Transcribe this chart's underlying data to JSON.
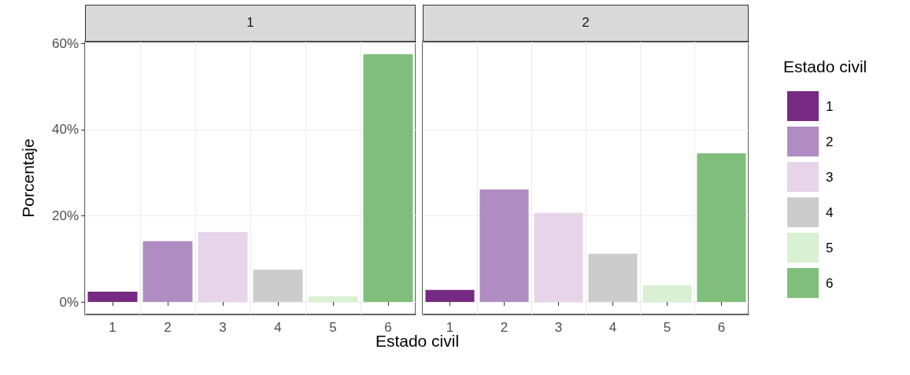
{
  "chart_data": [
    {
      "type": "bar",
      "title": "1",
      "xlabel": "Estado civil",
      "ylabel": "Porcentaje",
      "categories": [
        "1",
        "2",
        "3",
        "4",
        "5",
        "6"
      ],
      "series": [
        {
          "color": "#762a83",
          "values": [
            2.4,
            null,
            null,
            null,
            null,
            null
          ]
        },
        {
          "color": "#af8dc3",
          "values": [
            null,
            14.1,
            null,
            null,
            null,
            null
          ]
        },
        {
          "color": "#e7d4e8",
          "values": [
            null,
            null,
            16.2,
            null,
            null,
            null
          ]
        },
        {
          "color": "#cccccc",
          "values": [
            null,
            null,
            null,
            7.5,
            null,
            null
          ]
        },
        {
          "color": "#d9f0d3",
          "values": [
            null,
            null,
            null,
            null,
            1.3,
            null
          ]
        },
        {
          "color": "#7fbf7b",
          "values": [
            null,
            null,
            null,
            null,
            null,
            57.5
          ]
        }
      ],
      "ylim": [
        -2.9,
        60.4
      ],
      "yticks": [
        {
          "value": 0,
          "label": "0%"
        },
        {
          "value": 20,
          "label": "20%"
        },
        {
          "value": 40,
          "label": "40%"
        },
        {
          "value": 60,
          "label": "60%"
        }
      ],
      "grid": true
    },
    {
      "type": "bar",
      "title": "2",
      "categories": [
        "1",
        "2",
        "3",
        "4",
        "5",
        "6"
      ],
      "series": [
        {
          "name": "1",
          "color": "#762a83",
          "values": [
            2.8,
            null,
            null,
            null,
            null,
            null
          ]
        },
        {
          "name": "2",
          "color": "#af8dc3",
          "values": [
            null,
            26.1,
            null,
            null,
            null,
            null
          ]
        },
        {
          "name": "3",
          "color": "#e7d4e8",
          "values": [
            null,
            null,
            20.7,
            null,
            null,
            null
          ]
        },
        {
          "name": "4",
          "color": "#cccccc",
          "values": [
            null,
            null,
            null,
            11.2,
            null,
            null
          ]
        },
        {
          "name": "5",
          "color": "#d9f0d3",
          "values": [
            null,
            null,
            null,
            null,
            3.9,
            null
          ]
        },
        {
          "name": "6",
          "color": "#7fbf7b",
          "values": [
            null,
            null,
            null,
            null,
            null,
            34.5
          ]
        }
      ],
      "ylim": [
        -2.9,
        60.4
      ],
      "yticks": [
        0,
        20,
        40,
        60
      ],
      "grid": true,
      "tick_labels": "x",
      "legend": "right",
      "legend_title": "Estado civil"
    }
  ]
}
